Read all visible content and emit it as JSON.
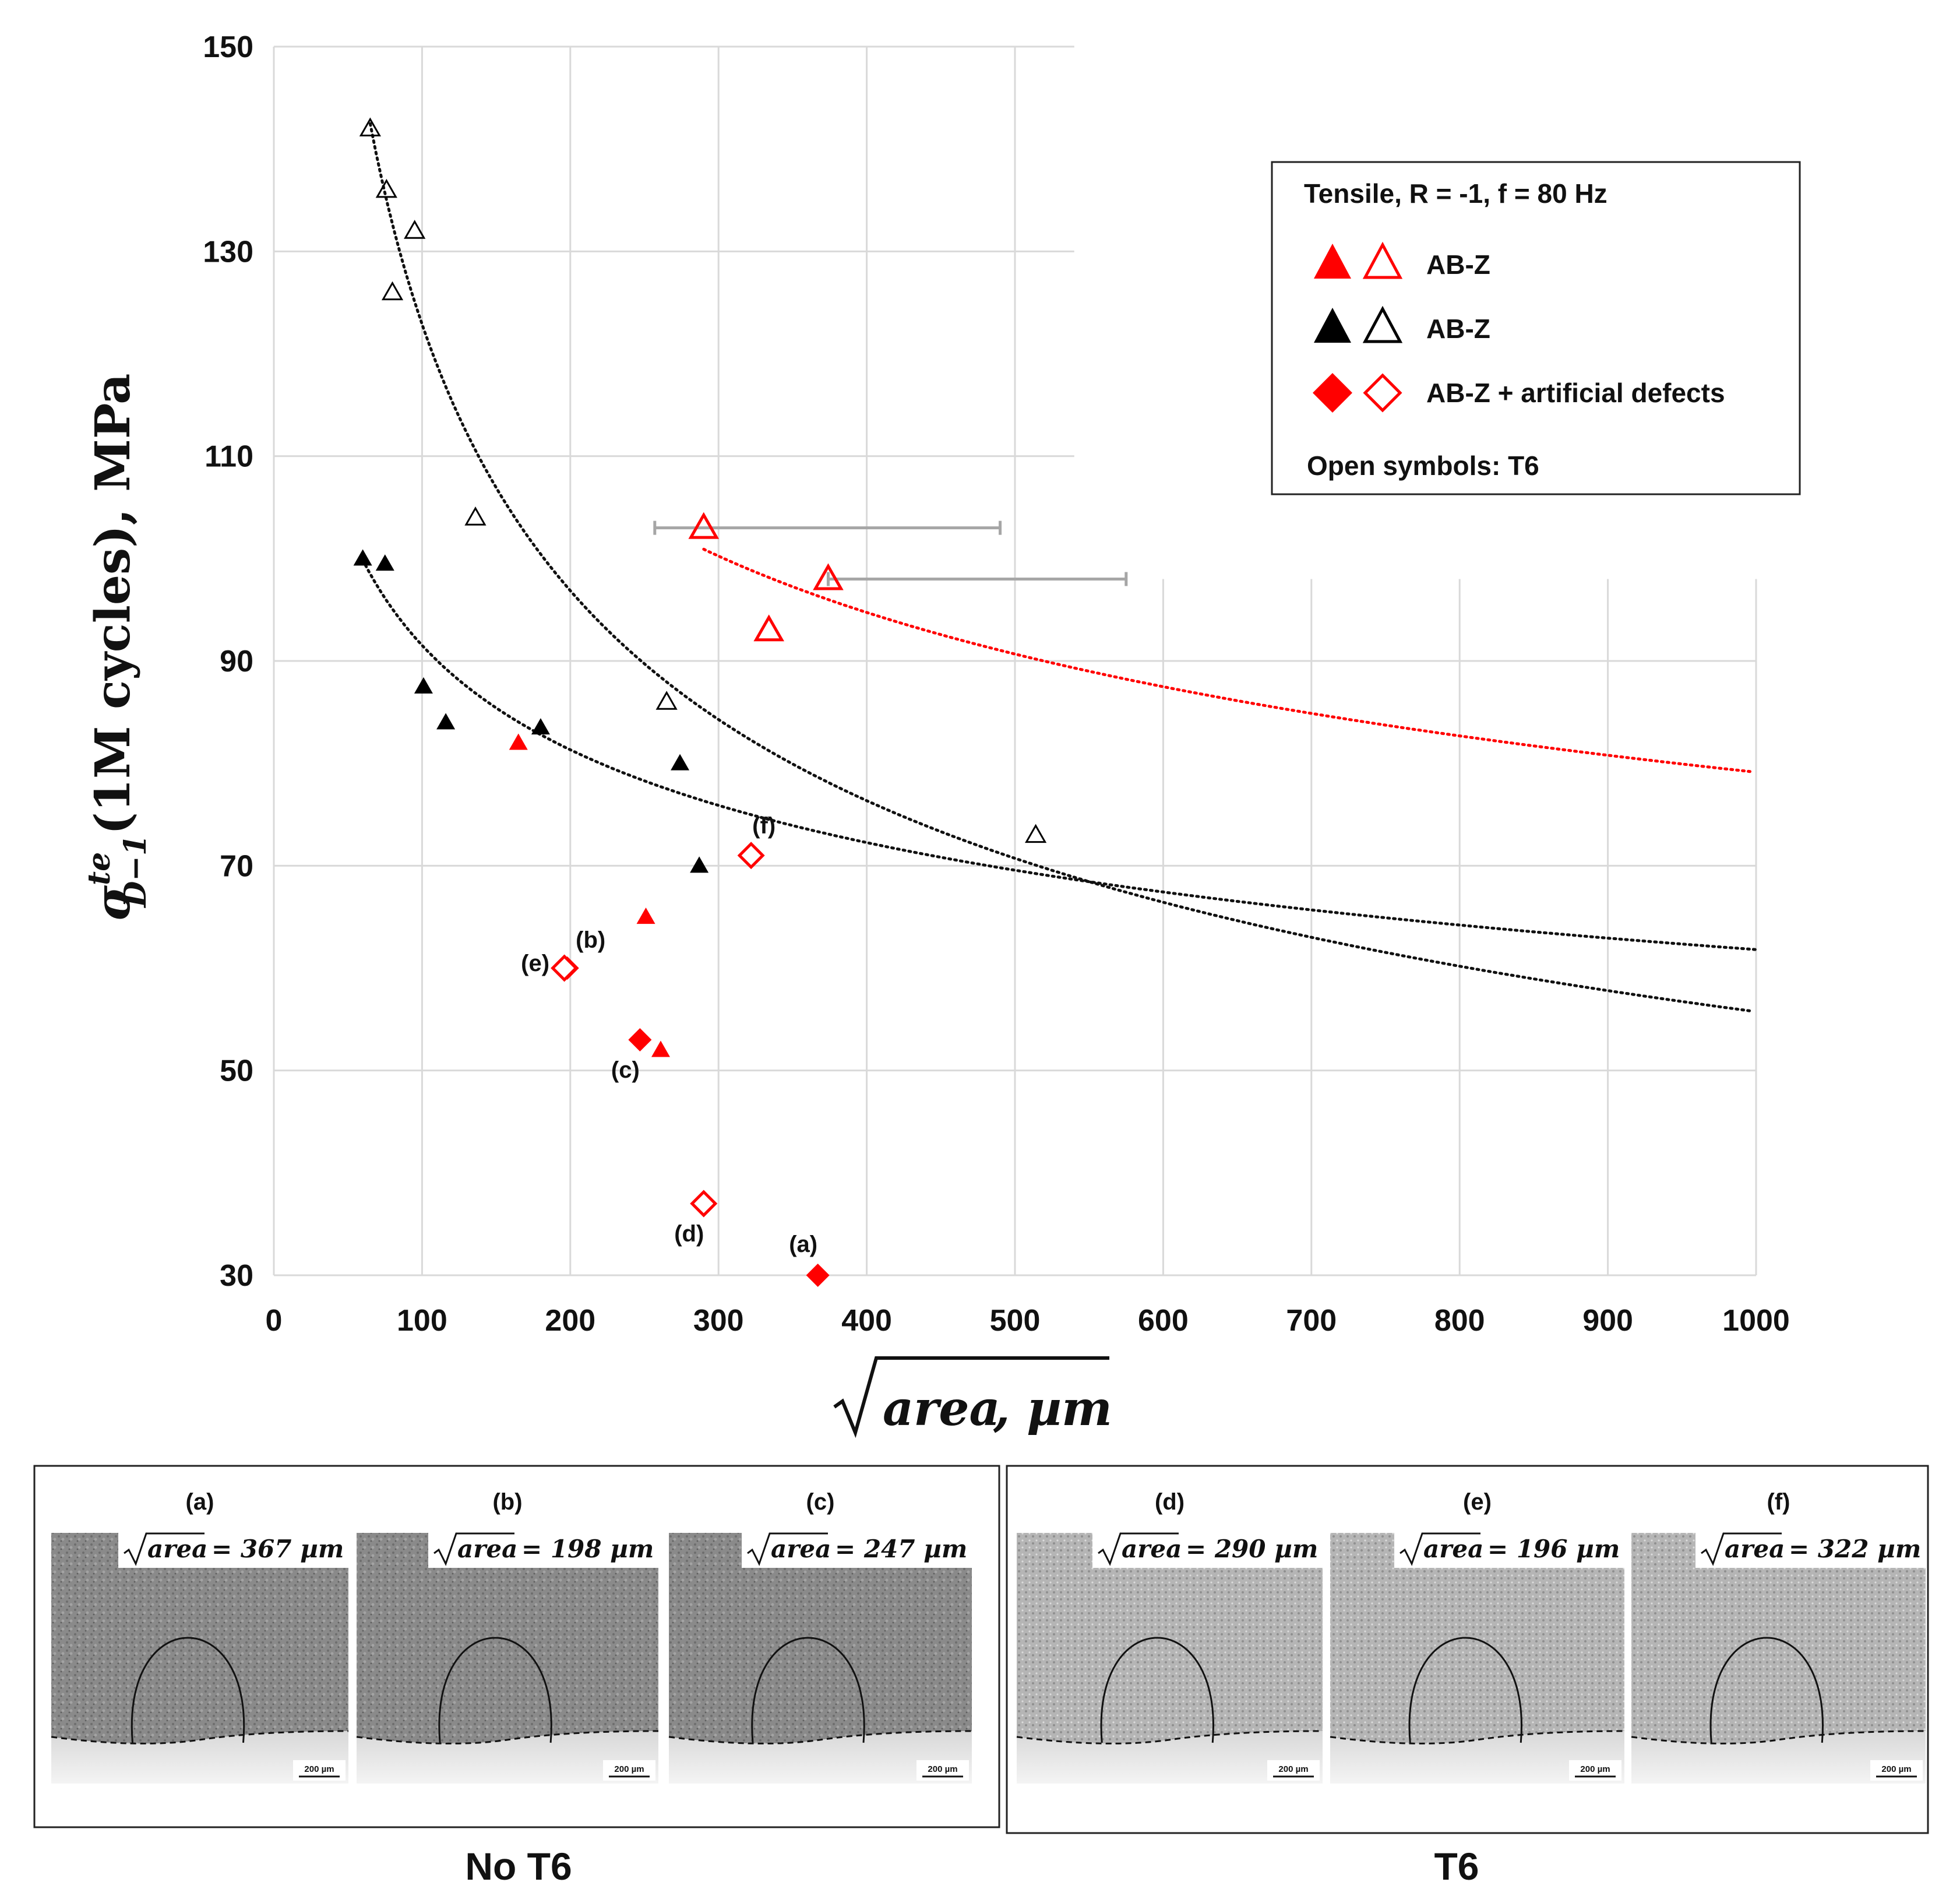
{
  "chart_data": {
    "type": "scatter",
    "xlabel": "√area, µm",
    "ylabel": "σ^te_D−1(1M cycles), MPa",
    "ylabel_parts": {
      "sigma": "σ",
      "sup": "te",
      "sub": "D−1",
      "rest": "(1M cycles), MPa"
    },
    "xlabel_parts": {
      "area": "area",
      "unit": ", µm"
    },
    "xlim": [
      0,
      1000
    ],
    "ylim": [
      30,
      150
    ],
    "xticks": [
      "0",
      "100",
      "200",
      "300",
      "400",
      "500",
      "600",
      "700",
      "800",
      "900",
      "1000"
    ],
    "yticks": [
      "30",
      "50",
      "70",
      "90",
      "110",
      "130",
      "150"
    ],
    "grid": true,
    "series": [
      {
        "name": "AB-Z (red filled, no T6)",
        "marker": "triangle",
        "color": "#ff0000",
        "filled": true,
        "points": [
          [
            165,
            82
          ],
          [
            251,
            65
          ],
          [
            261,
            52
          ]
        ]
      },
      {
        "name": "AB-Z (red open, T6)",
        "marker": "triangle",
        "color": "#ff0000",
        "filled": false,
        "points": [
          [
            290,
            103
          ],
          [
            374,
            98
          ],
          [
            334,
            93
          ]
        ]
      },
      {
        "name": "AB-Z (black filled, no T6)",
        "marker": "triangle",
        "color": "#000000",
        "filled": true,
        "points": [
          [
            60,
            100
          ],
          [
            75,
            99.5
          ],
          [
            101,
            87.5
          ],
          [
            116,
            84
          ],
          [
            180,
            83.5
          ],
          [
            274,
            80
          ],
          [
            287,
            70
          ]
        ]
      },
      {
        "name": "AB-Z (black open, T6)",
        "marker": "triangle",
        "color": "#000000",
        "filled": false,
        "points": [
          [
            65,
            142
          ],
          [
            76,
            136
          ],
          [
            95,
            132
          ],
          [
            80,
            126
          ],
          [
            136,
            104
          ],
          [
            265,
            86
          ],
          [
            514,
            73
          ]
        ]
      },
      {
        "name": "AB-Z + artificial defects (filled, no T6)",
        "marker": "diamond",
        "color": "#ff0000",
        "filled": true,
        "points": [
          [
            367,
            30
          ],
          [
            198,
            60
          ],
          [
            247,
            53
          ]
        ]
      },
      {
        "name": "AB-Z + artificial defects (open, T6)",
        "marker": "diamond",
        "color": "#ff0000",
        "filled": false,
        "points": [
          [
            290,
            37
          ],
          [
            196,
            60
          ],
          [
            322,
            71
          ]
        ]
      }
    ],
    "point_labels": [
      {
        "text": "(a)",
        "x": 367,
        "y": 30
      },
      {
        "text": "(b)",
        "x": 198,
        "y": 60
      },
      {
        "text": "(c)",
        "x": 247,
        "y": 53
      },
      {
        "text": "(d)",
        "x": 290,
        "y": 37
      },
      {
        "text": "(e)",
        "x": 196,
        "y": 60
      },
      {
        "text": "(f)",
        "x": 322,
        "y": 71
      }
    ],
    "error_bars": [
      {
        "y": 103,
        "x_min": 257,
        "x_max": 490
      },
      {
        "y": 98,
        "x_min": 374,
        "x_max": 575
      }
    ],
    "trendlines": [
      {
        "name": "black open power fit",
        "color": "#111111",
        "style": "dotted",
        "a": 597.2,
        "b": -0.3433,
        "x_from": 65,
        "x_to": 1000
      },
      {
        "name": "black filled power fit",
        "color": "#111111",
        "style": "dotted",
        "a": 200.7,
        "b": -0.1705,
        "x_from": 60,
        "x_to": 1000
      },
      {
        "name": "red open power fit",
        "color": "#ff0000",
        "style": "dotted",
        "a": 307.3,
        "b": -0.1964,
        "x_from": 290,
        "x_to": 1000
      }
    ],
    "legend": {
      "placement": "top-right",
      "title": "Tensile, R = -1, f = 80 Hz",
      "entries": [
        {
          "label": "AB-Z",
          "marker": "triangle",
          "color": "#ff0000"
        },
        {
          "label": "AB-Z",
          "marker": "triangle",
          "color": "#000000"
        },
        {
          "label": "AB-Z + artificial defects",
          "marker": "diamond",
          "color": "#ff0000"
        }
      ],
      "note": "Open symbols: T6"
    }
  },
  "micrographs": {
    "groups": [
      {
        "caption": "No T6",
        "panels": [
          {
            "label": "(a)",
            "value": "367",
            "unit": "µm",
            "scale": "200 µm"
          },
          {
            "label": "(b)",
            "value": "198",
            "unit": "µm",
            "scale": "200 µm"
          },
          {
            "label": "(c)",
            "value": "247",
            "unit": "µm",
            "scale": "200 µm"
          }
        ]
      },
      {
        "caption": "T6",
        "panels": [
          {
            "label": "(d)",
            "value": "290",
            "unit": "µm",
            "scale": "200 µm"
          },
          {
            "label": "(e)",
            "value": "196",
            "unit": "µm",
            "scale": "200 µm"
          },
          {
            "label": "(f)",
            "value": "322",
            "unit": "µm",
            "scale": "200 µm"
          }
        ]
      }
    ],
    "formula_var": "area"
  },
  "colors": {
    "red": "#ff0000",
    "black": "#000000",
    "grid": "#d9d9d9",
    "errorbar": "#a6a6a6"
  }
}
